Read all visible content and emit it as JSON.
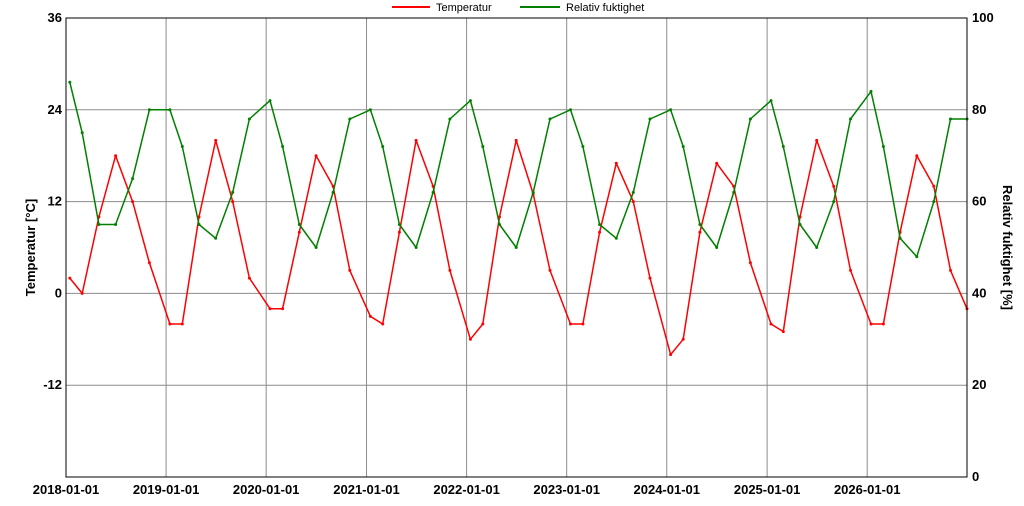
{
  "chart_data": {
    "type": "line",
    "x_ticks": [
      "2018-01-01",
      "2019-01-01",
      "2020-01-01",
      "2021-01-01",
      "2022-01-01",
      "2023-01-01",
      "2024-01-01",
      "2025-01-01",
      "2026-01-01"
    ],
    "xlim": [
      "2018-01-01",
      "2026-12-31"
    ],
    "y_left": {
      "label": "Temperatur [°C]",
      "ticks": [
        -12,
        0,
        12,
        24,
        36
      ],
      "ylim": [
        -24,
        36
      ]
    },
    "y_right": {
      "label": "Relativ fuktighet [%]",
      "ticks": [
        0,
        20,
        40,
        60,
        80,
        100
      ],
      "ylim": [
        0,
        100
      ]
    },
    "grid": true,
    "legend_position": "top-center",
    "series": [
      {
        "name": "Temperatur",
        "color": "#ff0000",
        "axis": "left",
        "x": [
          "2018-01-15",
          "2018-03-01",
          "2018-05-01",
          "2018-07-01",
          "2018-09-01",
          "2018-11-01",
          "2019-01-15",
          "2019-03-01",
          "2019-05-01",
          "2019-07-01",
          "2019-09-01",
          "2019-11-01",
          "2020-01-15",
          "2020-03-01",
          "2020-05-01",
          "2020-07-01",
          "2020-09-01",
          "2020-11-01",
          "2021-01-15",
          "2021-03-01",
          "2021-05-01",
          "2021-07-01",
          "2021-09-01",
          "2021-11-01",
          "2022-01-15",
          "2022-03-01",
          "2022-05-01",
          "2022-07-01",
          "2022-09-01",
          "2022-11-01",
          "2023-01-15",
          "2023-03-01",
          "2023-05-01",
          "2023-07-01",
          "2023-09-01",
          "2023-11-01",
          "2024-01-15",
          "2024-03-01",
          "2024-05-01",
          "2024-07-01",
          "2024-09-01",
          "2024-11-01",
          "2025-01-15",
          "2025-03-01",
          "2025-05-01",
          "2025-07-01",
          "2025-09-01",
          "2025-11-01",
          "2026-01-15",
          "2026-03-01",
          "2026-05-01",
          "2026-07-01",
          "2026-09-01",
          "2026-11-01",
          "2026-12-31"
        ],
        "values": [
          2,
          0,
          10,
          18,
          12,
          4,
          -4,
          -4,
          10,
          20,
          12,
          2,
          -2,
          -2,
          8,
          18,
          14,
          3,
          -3,
          -4,
          8,
          20,
          14,
          3,
          -6,
          -4,
          10,
          20,
          13,
          3,
          -4,
          -4,
          8,
          17,
          12,
          2,
          -8,
          -6,
          8,
          17,
          14,
          4,
          -4,
          -5,
          10,
          20,
          14,
          3,
          -4,
          -4,
          8,
          18,
          14,
          3,
          -2
        ]
      },
      {
        "name": "Relativ fuktighet",
        "color": "#008000",
        "axis": "right",
        "x": [
          "2018-01-15",
          "2018-03-01",
          "2018-05-01",
          "2018-07-01",
          "2018-09-01",
          "2018-11-01",
          "2019-01-15",
          "2019-03-01",
          "2019-05-01",
          "2019-07-01",
          "2019-09-01",
          "2019-11-01",
          "2020-01-15",
          "2020-03-01",
          "2020-05-01",
          "2020-07-01",
          "2020-09-01",
          "2020-11-01",
          "2021-01-15",
          "2021-03-01",
          "2021-05-01",
          "2021-07-01",
          "2021-09-01",
          "2021-11-01",
          "2022-01-15",
          "2022-03-01",
          "2022-05-01",
          "2022-07-01",
          "2022-09-01",
          "2022-11-01",
          "2023-01-15",
          "2023-03-01",
          "2023-05-01",
          "2023-07-01",
          "2023-09-01",
          "2023-11-01",
          "2024-01-15",
          "2024-03-01",
          "2024-05-01",
          "2024-07-01",
          "2024-09-01",
          "2024-11-01",
          "2025-01-15",
          "2025-03-01",
          "2025-05-01",
          "2025-07-01",
          "2025-09-01",
          "2025-11-01",
          "2026-01-15",
          "2026-03-01",
          "2026-05-01",
          "2026-07-01",
          "2026-09-01",
          "2026-11-01",
          "2026-12-31"
        ],
        "values": [
          86,
          75,
          55,
          55,
          65,
          80,
          80,
          72,
          55,
          52,
          62,
          78,
          82,
          72,
          55,
          50,
          62,
          78,
          80,
          72,
          55,
          50,
          62,
          78,
          82,
          72,
          55,
          50,
          62,
          78,
          80,
          72,
          55,
          52,
          62,
          78,
          80,
          72,
          55,
          50,
          62,
          78,
          82,
          72,
          55,
          50,
          60,
          78,
          84,
          72,
          52,
          48,
          60,
          78,
          78
        ]
      }
    ]
  }
}
